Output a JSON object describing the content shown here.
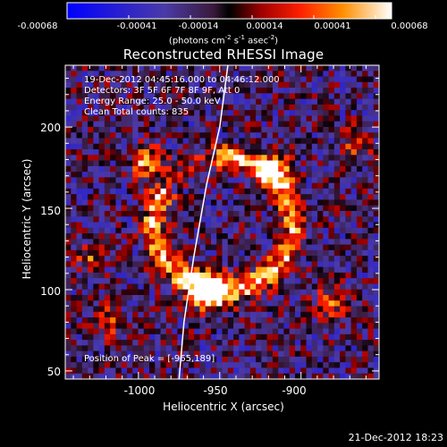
{
  "colorbar": {
    "ticks": [
      "-0.00068",
      "-0.00041",
      "-0.00014",
      "0.00014",
      "0.00041",
      "0.00068"
    ],
    "units_base": "(photons cm",
    "units_exp1": "-2",
    "units_mid1": " s",
    "units_exp2": "-1",
    "units_mid2": " asec",
    "units_exp3": "-2",
    "units_end": ")"
  },
  "chart_data": {
    "type": "heatmap",
    "title": "Reconstructed RHESSI Image",
    "xlabel": "Heliocentric X (arcsec)",
    "ylabel": "Heliocentric Y (arcsec)",
    "xlim": [
      -1045,
      -852
    ],
    "ylim": [
      45,
      238
    ],
    "xticks": [
      -1000,
      -950,
      -900
    ],
    "xtick_labels": [
      "-1000",
      "-950",
      "-900"
    ],
    "yticks": [
      50,
      100,
      150,
      200
    ],
    "ytick_labels": [
      "50",
      "100",
      "150",
      "200"
    ],
    "colorbar_range": [
      -0.00068,
      0.00068
    ],
    "colormap": "rainbow-hot",
    "grid": false,
    "limb_curve": [
      [
        -975,
        45
      ],
      [
        -972,
        80
      ],
      [
        -966,
        120
      ],
      [
        -958,
        165
      ],
      [
        -950,
        200
      ],
      [
        -945,
        238
      ]
    ],
    "peak": [
      -965,
      189
    ]
  },
  "info": {
    "line1": "19-Dec-2012 04:45:16.000 to 04:46:12.000",
    "line2": "Detectors: 3F 5F 6F 7F 8F 9F, Att 0",
    "line3": "Energy Range: 25.0 - 50.0 keV",
    "line4": "Clean     Total counts: 835",
    "peak_text": "Position of Peak = [-965,189]"
  },
  "timestamp": "21-Dec-2012 18:23"
}
